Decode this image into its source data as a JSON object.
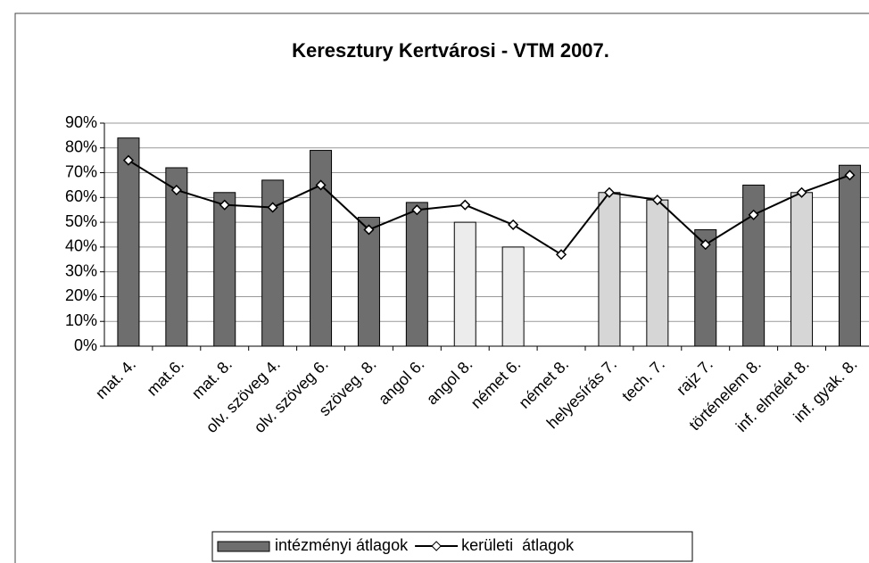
{
  "chart_data": {
    "type": "bar",
    "title": "Keresztury Kertvárosi - VTM 2007.",
    "categories": [
      "mat. 4.",
      "mat.6.",
      "mat. 8.",
      "olv. szöveg 4.",
      "olv. szöveg 6.",
      "szöveg. 8.",
      "angol 6.",
      "angol 8.",
      "német 6.",
      "német 8.",
      "helyesírás 7.",
      "tech. 7.",
      "rajz 7.",
      "történelem  8.",
      "inf. elmélet 8.",
      "inf. gyak. 8."
    ],
    "series": [
      {
        "name": "intézményi átlagok",
        "type": "bar",
        "color": "#6e6e6e",
        "colors": [
          "#6e6e6e",
          "#6e6e6e",
          "#6e6e6e",
          "#6e6e6e",
          "#6e6e6e",
          "#6e6e6e",
          "#6e6e6e",
          "#ececec",
          "#ececec",
          "#ececec",
          "#d6d6d6",
          "#d6d6d6",
          "#6e6e6e",
          "#6e6e6e",
          "#d6d6d6",
          "#6e6e6e"
        ],
        "values": [
          84,
          72,
          62,
          67,
          79,
          52,
          58,
          50,
          40,
          null,
          62,
          59,
          47,
          65,
          62,
          73
        ]
      },
      {
        "name": "kerületi  átlagok",
        "type": "line",
        "color": "#000000",
        "values": [
          75,
          63,
          57,
          56,
          65,
          47,
          55,
          57,
          49,
          37,
          62,
          59,
          41,
          53,
          62,
          69
        ]
      }
    ],
    "ylim": [
      0,
      90
    ],
    "yticks": [
      {
        "value": 0,
        "label": "0%"
      },
      {
        "value": 10,
        "label": "10%"
      },
      {
        "value": 20,
        "label": "20%"
      },
      {
        "value": 30,
        "label": "30%"
      },
      {
        "value": 40,
        "label": "40%"
      },
      {
        "value": 50,
        "label": "50%"
      },
      {
        "value": 60,
        "label": "60%"
      },
      {
        "value": 70,
        "label": "70%"
      },
      {
        "value": 80,
        "label": "80%"
      },
      {
        "value": 90,
        "label": "90%"
      }
    ],
    "grid": true,
    "legend": "bottom"
  }
}
